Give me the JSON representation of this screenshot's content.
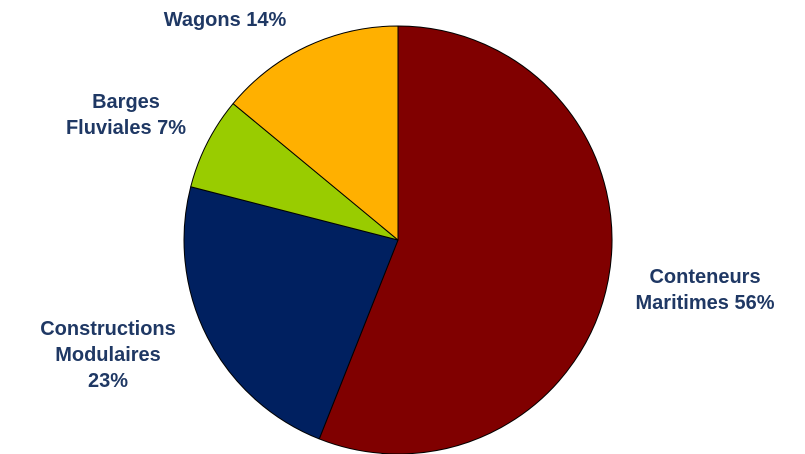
{
  "chart_data": {
    "type": "pie",
    "title": "",
    "start_angle_deg": 0,
    "direction": "clockwise",
    "label_color": "#1F3864",
    "slices": [
      {
        "key": "conteneurs",
        "label_lines": [
          "Conteneurs",
          "Maritimes 56%"
        ],
        "value": 56,
        "color": "#800000"
      },
      {
        "key": "constructions",
        "label_lines": [
          "Constructions",
          "Modulaires",
          "23%"
        ],
        "value": 23,
        "color": "#002060"
      },
      {
        "key": "barges",
        "label_lines": [
          "Barges",
          "Fluviales 7%"
        ],
        "value": 7,
        "color": "#99CC00"
      },
      {
        "key": "wagons",
        "label_lines": [
          "Wagons 14%"
        ],
        "value": 14,
        "color": "#FFB000"
      }
    ]
  }
}
